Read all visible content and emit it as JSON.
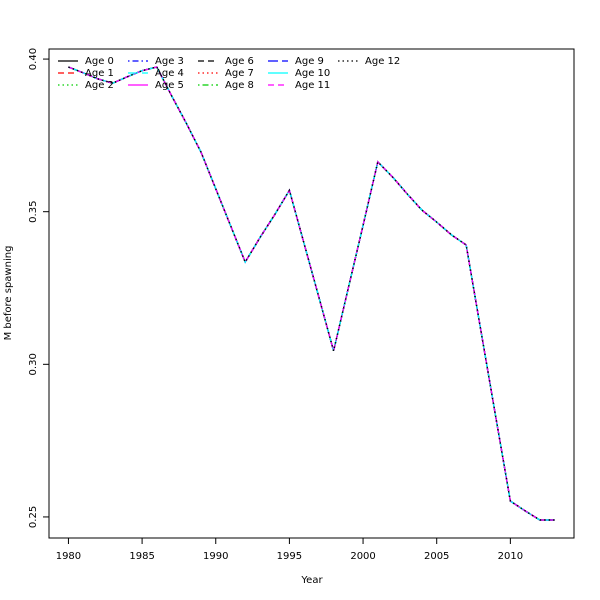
{
  "chart_data": {
    "type": "line",
    "xlabel": "Year",
    "ylabel": "M before spawning",
    "x": [
      1980,
      1981,
      1982,
      1983,
      1984,
      1985,
      1986,
      1987,
      1988,
      1989,
      1990,
      1991,
      1992,
      1993,
      1994,
      1995,
      1996,
      1997,
      1998,
      1999,
      2000,
      2001,
      2002,
      2003,
      2004,
      2005,
      2006,
      2007,
      2008,
      2009,
      2010,
      2011,
      2012,
      2013
    ],
    "xlim": [
      1978.68,
      2014.32
    ],
    "xticks": [
      1980,
      1985,
      1990,
      1995,
      2000,
      2005,
      2010
    ],
    "ylim": [
      0.2431,
      0.4033
    ],
    "yticks": [
      0.25,
      {
        "value": 0.3,
        "label": "0.30"
      },
      0.35,
      {
        "value": 0.4,
        "label": "0.40"
      }
    ],
    "legend": "top-left",
    "series": [
      {
        "name": "Age 0",
        "color": "#000000",
        "linestyle": "solid",
        "values": [
          0.3974,
          0.3955,
          0.3935,
          0.3921,
          0.3942,
          0.3962,
          0.3974,
          0.388,
          0.379,
          0.3695,
          0.3575,
          0.3455,
          0.3335,
          0.3415,
          0.349,
          0.357,
          0.3395,
          0.322,
          0.3044,
          0.325,
          0.3455,
          0.3663,
          0.3614,
          0.3558,
          0.3505,
          0.3466,
          0.3424,
          0.3391,
          0.311,
          0.283,
          0.2552,
          0.252,
          0.249,
          0.249
        ]
      },
      {
        "name": "Age 1",
        "color": "#ff0000",
        "linestyle": "dashed",
        "values": [
          0.3974,
          0.3955,
          0.3935,
          0.3921,
          0.3942,
          0.3962,
          0.3974,
          0.388,
          0.379,
          0.3695,
          0.3575,
          0.3455,
          0.3335,
          0.3415,
          0.349,
          0.357,
          0.3395,
          0.322,
          0.3044,
          0.325,
          0.3455,
          0.3663,
          0.3614,
          0.3558,
          0.3505,
          0.3466,
          0.3424,
          0.3391,
          0.311,
          0.283,
          0.2552,
          0.252,
          0.249,
          0.249
        ]
      },
      {
        "name": "Age 2",
        "color": "#00cd00",
        "linestyle": "dotted",
        "values": [
          0.3974,
          0.3955,
          0.3935,
          0.3921,
          0.3942,
          0.3962,
          0.3974,
          0.388,
          0.379,
          0.3695,
          0.3575,
          0.3455,
          0.3335,
          0.3415,
          0.349,
          0.357,
          0.3395,
          0.322,
          0.3044,
          0.325,
          0.3455,
          0.3663,
          0.3614,
          0.3558,
          0.3505,
          0.3466,
          0.3424,
          0.3391,
          0.311,
          0.283,
          0.2552,
          0.252,
          0.249,
          0.249
        ]
      },
      {
        "name": "Age 3",
        "color": "#0000ff",
        "linestyle": "dotdash",
        "values": [
          0.3974,
          0.3955,
          0.3935,
          0.3921,
          0.3942,
          0.3962,
          0.3974,
          0.388,
          0.379,
          0.3695,
          0.3575,
          0.3455,
          0.3335,
          0.3415,
          0.349,
          0.357,
          0.3395,
          0.322,
          0.3044,
          0.325,
          0.3455,
          0.3663,
          0.3614,
          0.3558,
          0.3505,
          0.3466,
          0.3424,
          0.3391,
          0.311,
          0.283,
          0.2552,
          0.252,
          0.249,
          0.249
        ]
      },
      {
        "name": "Age 4",
        "color": "#00ffff",
        "linestyle": "longdash",
        "values": [
          0.3974,
          0.3955,
          0.3935,
          0.3921,
          0.3942,
          0.3962,
          0.3974,
          0.388,
          0.379,
          0.3695,
          0.3575,
          0.3455,
          0.3335,
          0.3415,
          0.349,
          0.357,
          0.3395,
          0.322,
          0.3044,
          0.325,
          0.3455,
          0.3663,
          0.3614,
          0.3558,
          0.3505,
          0.3466,
          0.3424,
          0.3391,
          0.311,
          0.283,
          0.2552,
          0.252,
          0.249,
          0.249
        ]
      },
      {
        "name": "Age 5",
        "color": "#ff00ff",
        "linestyle": "solid",
        "values": [
          0.3974,
          0.3955,
          0.3935,
          0.3921,
          0.3942,
          0.3962,
          0.3974,
          0.388,
          0.379,
          0.3695,
          0.3575,
          0.3455,
          0.3335,
          0.3415,
          0.349,
          0.357,
          0.3395,
          0.322,
          0.3044,
          0.325,
          0.3455,
          0.3663,
          0.3614,
          0.3558,
          0.3505,
          0.3466,
          0.3424,
          0.3391,
          0.311,
          0.283,
          0.2552,
          0.252,
          0.249,
          0.249
        ]
      },
      {
        "name": "Age 6",
        "color": "#000000",
        "linestyle": "dashed",
        "values": [
          0.3974,
          0.3955,
          0.3935,
          0.3921,
          0.3942,
          0.3962,
          0.3974,
          0.388,
          0.379,
          0.3695,
          0.3575,
          0.3455,
          0.3335,
          0.3415,
          0.349,
          0.357,
          0.3395,
          0.322,
          0.3044,
          0.325,
          0.3455,
          0.3663,
          0.3614,
          0.3558,
          0.3505,
          0.3466,
          0.3424,
          0.3391,
          0.311,
          0.283,
          0.2552,
          0.252,
          0.249,
          0.249
        ]
      },
      {
        "name": "Age 7",
        "color": "#ff0000",
        "linestyle": "dotted",
        "values": [
          0.3974,
          0.3955,
          0.3935,
          0.3921,
          0.3942,
          0.3962,
          0.3974,
          0.388,
          0.379,
          0.3695,
          0.3575,
          0.3455,
          0.3335,
          0.3415,
          0.349,
          0.357,
          0.3395,
          0.322,
          0.3044,
          0.325,
          0.3455,
          0.3663,
          0.3614,
          0.3558,
          0.3505,
          0.3466,
          0.3424,
          0.3391,
          0.311,
          0.283,
          0.2552,
          0.252,
          0.249,
          0.249
        ]
      },
      {
        "name": "Age 8",
        "color": "#00cd00",
        "linestyle": "dotdash",
        "values": [
          0.3974,
          0.3955,
          0.3935,
          0.3921,
          0.3942,
          0.3962,
          0.3974,
          0.388,
          0.379,
          0.3695,
          0.3575,
          0.3455,
          0.3335,
          0.3415,
          0.349,
          0.357,
          0.3395,
          0.322,
          0.3044,
          0.325,
          0.3455,
          0.3663,
          0.3614,
          0.3558,
          0.3505,
          0.3466,
          0.3424,
          0.3391,
          0.311,
          0.283,
          0.2552,
          0.252,
          0.249,
          0.249
        ]
      },
      {
        "name": "Age 9",
        "color": "#0000ff",
        "linestyle": "longdash",
        "values": [
          0.3974,
          0.3955,
          0.3935,
          0.3921,
          0.3942,
          0.3962,
          0.3974,
          0.388,
          0.379,
          0.3695,
          0.3575,
          0.3455,
          0.3335,
          0.3415,
          0.349,
          0.357,
          0.3395,
          0.322,
          0.3044,
          0.325,
          0.3455,
          0.3663,
          0.3614,
          0.3558,
          0.3505,
          0.3466,
          0.3424,
          0.3391,
          0.311,
          0.283,
          0.2552,
          0.252,
          0.249,
          0.249
        ]
      },
      {
        "name": "Age 10",
        "color": "#00ffff",
        "linestyle": "solid",
        "values": [
          0.3974,
          0.3955,
          0.3935,
          0.3921,
          0.3942,
          0.3962,
          0.3974,
          0.388,
          0.379,
          0.3695,
          0.3575,
          0.3455,
          0.3335,
          0.3415,
          0.349,
          0.357,
          0.3395,
          0.322,
          0.3044,
          0.325,
          0.3455,
          0.3663,
          0.3614,
          0.3558,
          0.3505,
          0.3466,
          0.3424,
          0.3391,
          0.311,
          0.283,
          0.2552,
          0.252,
          0.249,
          0.249
        ]
      },
      {
        "name": "Age 11",
        "color": "#ff00ff",
        "linestyle": "dashed",
        "values": [
          0.3974,
          0.3955,
          0.3935,
          0.3921,
          0.3942,
          0.3962,
          0.3974,
          0.388,
          0.379,
          0.3695,
          0.3575,
          0.3455,
          0.3335,
          0.3415,
          0.349,
          0.357,
          0.3395,
          0.322,
          0.3044,
          0.325,
          0.3455,
          0.3663,
          0.3614,
          0.3558,
          0.3505,
          0.3466,
          0.3424,
          0.3391,
          0.311,
          0.283,
          0.2552,
          0.252,
          0.249,
          0.249
        ]
      },
      {
        "name": "Age 12",
        "color": "#000000",
        "linestyle": "dotted",
        "values": [
          0.3974,
          0.3955,
          0.3935,
          0.3921,
          0.3942,
          0.3962,
          0.3974,
          0.388,
          0.379,
          0.3695,
          0.3575,
          0.3455,
          0.3335,
          0.3415,
          0.349,
          0.357,
          0.3395,
          0.322,
          0.3044,
          0.325,
          0.3455,
          0.3663,
          0.3614,
          0.3558,
          0.3505,
          0.3466,
          0.3424,
          0.3391,
          0.311,
          0.283,
          0.2552,
          0.252,
          0.249,
          0.249
        ]
      }
    ]
  }
}
